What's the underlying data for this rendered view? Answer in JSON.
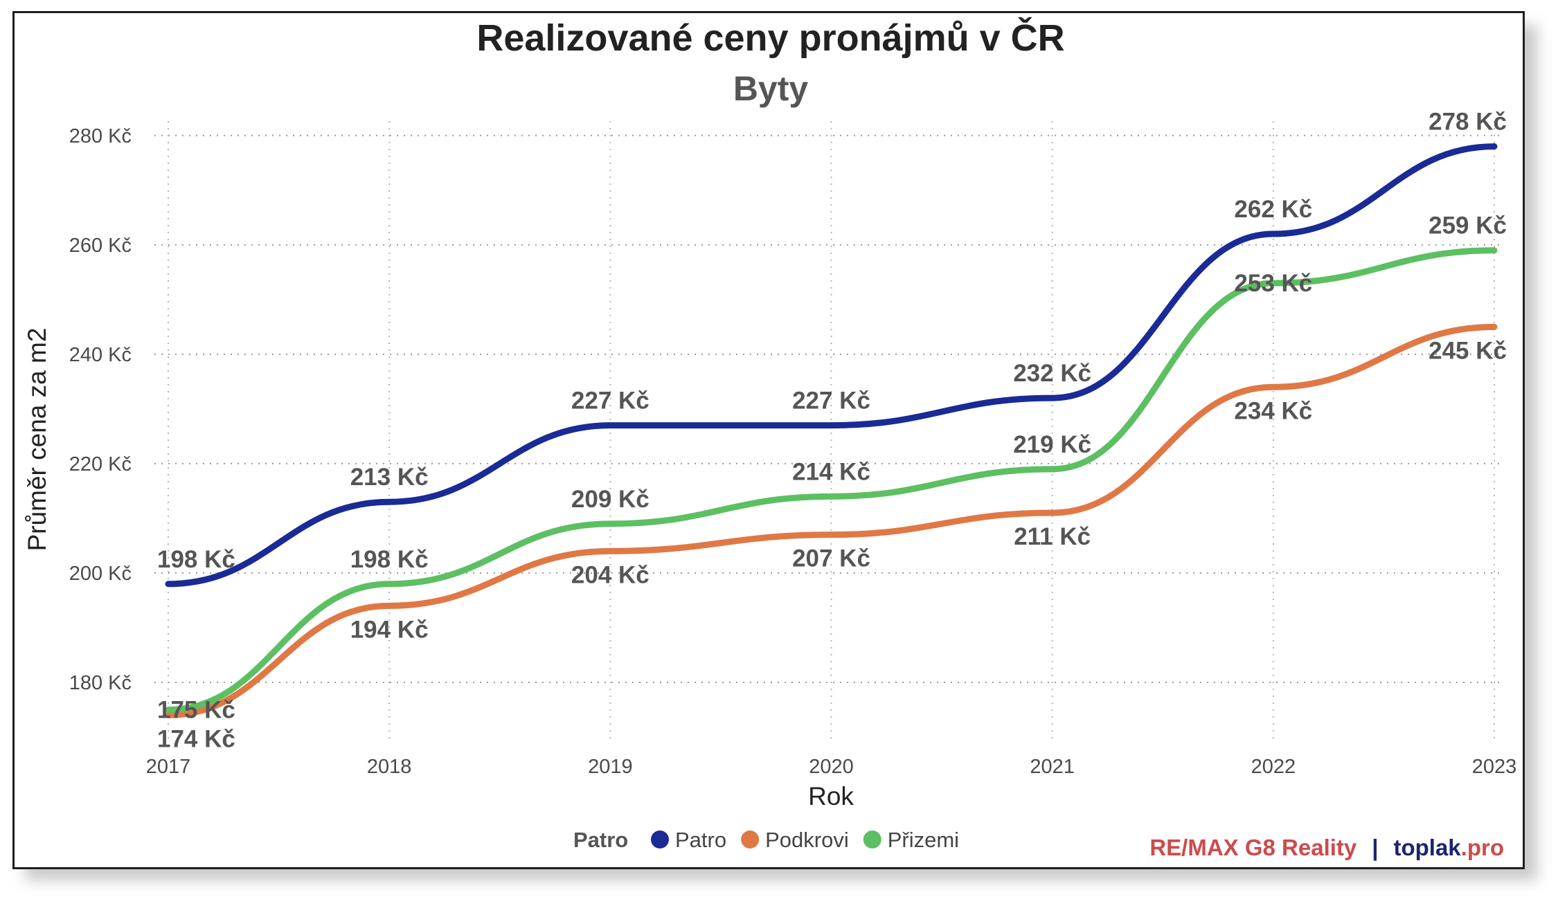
{
  "chart_data": {
    "type": "line",
    "title": "Realizované ceny pronájmů v ČR",
    "subtitle": "Byty",
    "xlabel": "Rok",
    "ylabel": "Průměr cena za m2",
    "categories": [
      "2017",
      "2018",
      "2019",
      "2020",
      "2021",
      "2022",
      "2023"
    ],
    "ylim": [
      170,
      282
    ],
    "yticks": [
      180,
      200,
      220,
      240,
      260,
      280
    ],
    "ytick_labels": [
      "180 Kč",
      "200 Kč",
      "220 Kč",
      "240 Kč",
      "260 Kč",
      "280 Kč"
    ],
    "grid": true,
    "value_suffix": " Kč",
    "legend": {
      "title": "Patro",
      "position": "bottom"
    },
    "series": [
      {
        "name": "Patro",
        "color": "#1a2a96",
        "values": [
          198,
          213,
          227,
          227,
          232,
          262,
          278
        ],
        "label_offsets": [
          "above",
          "above",
          "above",
          "above",
          "above",
          "above",
          "above"
        ]
      },
      {
        "name": "Podkrovi",
        "color": "#e07845",
        "values": [
          174,
          194,
          204,
          207,
          211,
          234,
          245
        ],
        "label_offsets": [
          "below",
          "below",
          "below",
          "below",
          "below",
          "below",
          "below"
        ]
      },
      {
        "name": "Přizemi",
        "color": "#5cbf62",
        "values": [
          175,
          198,
          209,
          214,
          219,
          253,
          259
        ],
        "label_offsets": [
          "inline",
          "above",
          "above",
          "above",
          "above",
          "inline",
          "above"
        ]
      }
    ]
  },
  "branding": {
    "part1": "RE/MAX G8 Reality",
    "separator": "|",
    "part2": "toplak",
    "part3": ".pro"
  }
}
